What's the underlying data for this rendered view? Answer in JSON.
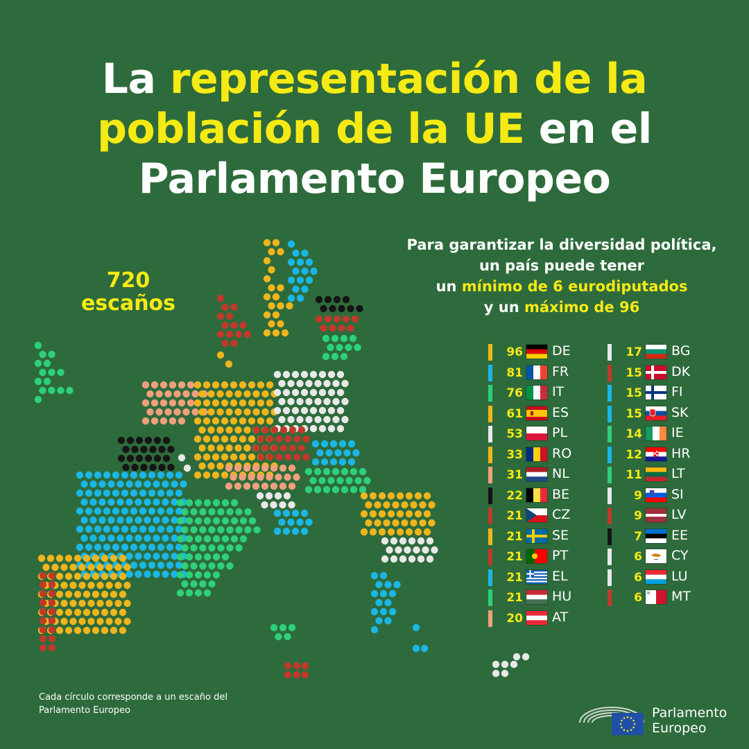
{
  "title": {
    "line1_a": "La ",
    "line1_b": "representación de la",
    "line2_a": "población de la UE",
    "line2_b": " en el",
    "line3": "Parlamento Europeo"
  },
  "total_seats": {
    "number": "720",
    "label": "escaños"
  },
  "note": {
    "line1": "Para garantizar la diversidad política,",
    "line2": "un país puede tener",
    "line3_a": "un ",
    "line3_b": "mínimo de 6 eurodiputados",
    "line4_a": "y un ",
    "line4_b": "máximo de 96"
  },
  "colors": {
    "background": "#2e6b3c",
    "highlight": "#f5ea14",
    "yellow": "#f0b51c",
    "blue": "#1ab7e6",
    "green": "#2ed07a",
    "white": "#e8e8e8",
    "salmon": "#f0a07c",
    "black": "#151515",
    "red": "#c0392b"
  },
  "countries": [
    {
      "seats": "96",
      "code": "DE",
      "color": "#f0b51c",
      "flag": "de"
    },
    {
      "seats": "81",
      "code": "FR",
      "color": "#1ab7e6",
      "flag": "fr"
    },
    {
      "seats": "76",
      "code": "IT",
      "color": "#2ed07a",
      "flag": "it"
    },
    {
      "seats": "61",
      "code": "ES",
      "color": "#f0b51c",
      "flag": "es"
    },
    {
      "seats": "53",
      "code": "PL",
      "color": "#e8e8e8",
      "flag": "pl"
    },
    {
      "seats": "33",
      "code": "RO",
      "color": "#f0b51c",
      "flag": "ro"
    },
    {
      "seats": "31",
      "code": "NL",
      "color": "#f0a07c",
      "flag": "nl"
    },
    {
      "seats": "22",
      "code": "BE",
      "color": "#151515",
      "flag": "be"
    },
    {
      "seats": "21",
      "code": "CZ",
      "color": "#c0392b",
      "flag": "cz"
    },
    {
      "seats": "21",
      "code": "SE",
      "color": "#f0b51c",
      "flag": "se"
    },
    {
      "seats": "21",
      "code": "PT",
      "color": "#c0392b",
      "flag": "pt"
    },
    {
      "seats": "21",
      "code": "EL",
      "color": "#1ab7e6",
      "flag": "el"
    },
    {
      "seats": "21",
      "code": "HU",
      "color": "#2ed07a",
      "flag": "hu"
    },
    {
      "seats": "20",
      "code": "AT",
      "color": "#f0a07c",
      "flag": "at"
    },
    {
      "seats": "17",
      "code": "BG",
      "color": "#e8e8e8",
      "flag": "bg"
    },
    {
      "seats": "15",
      "code": "DK",
      "color": "#c0392b",
      "flag": "dk"
    },
    {
      "seats": "15",
      "code": "FI",
      "color": "#1ab7e6",
      "flag": "fi"
    },
    {
      "seats": "15",
      "code": "SK",
      "color": "#1ab7e6",
      "flag": "sk"
    },
    {
      "seats": "14",
      "code": "IE",
      "color": "#2ed07a",
      "flag": "ie"
    },
    {
      "seats": "12",
      "code": "HR",
      "color": "#1ab7e6",
      "flag": "hr"
    },
    {
      "seats": "11",
      "code": "LT",
      "color": "#2ed07a",
      "flag": "lt"
    },
    {
      "seats": "9",
      "code": "SI",
      "color": "#e8e8e8",
      "flag": "si"
    },
    {
      "seats": "9",
      "code": "LV",
      "color": "#c0392b",
      "flag": "lv"
    },
    {
      "seats": "7",
      "code": "EE",
      "color": "#151515",
      "flag": "ee"
    },
    {
      "seats": "6",
      "code": "CY",
      "color": "#e8e8e8",
      "flag": "cy"
    },
    {
      "seats": "6",
      "code": "LU",
      "color": "#e8e8e8",
      "flag": "lu"
    },
    {
      "seats": "6",
      "code": "MT",
      "color": "#c0392b",
      "flag": "mt"
    }
  ],
  "footnote": {
    "line1": "Cada círculo corresponde a un escaño del",
    "line2": "Parlamento Europeo"
  },
  "logo": {
    "line1": "Parlamento",
    "line2": "Europeo"
  }
}
